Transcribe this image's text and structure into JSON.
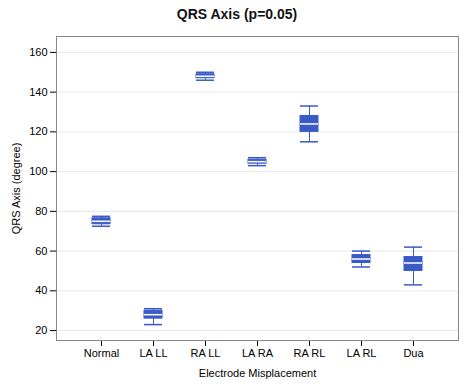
{
  "chart_data": {
    "type": "box",
    "title": "QRS Axis (p=0.05)",
    "xlabel": "Electrode Misplacement",
    "ylabel": "QRS Axis (degree)",
    "categories": [
      "Normal",
      "LA LL",
      "RA LL",
      "LA RA",
      "RA RL",
      "LA RL",
      "Dua"
    ],
    "median": [
      75,
      28,
      148,
      105,
      124,
      56,
      54
    ],
    "q1": [
      73.5,
      26,
      147,
      104,
      120,
      54,
      50
    ],
    "q3": [
      76.5,
      30,
      149,
      106,
      128,
      58,
      57
    ],
    "whisker_low": [
      72.5,
      23,
      146,
      103,
      115,
      52,
      43
    ],
    "whisker_high": [
      77.5,
      31,
      150,
      107,
      133,
      60,
      62
    ],
    "color": "#3a5ac8",
    "ylim": [
      15,
      168
    ],
    "yticks": [
      20,
      40,
      60,
      80,
      100,
      120,
      140,
      160
    ],
    "grid": true
  }
}
